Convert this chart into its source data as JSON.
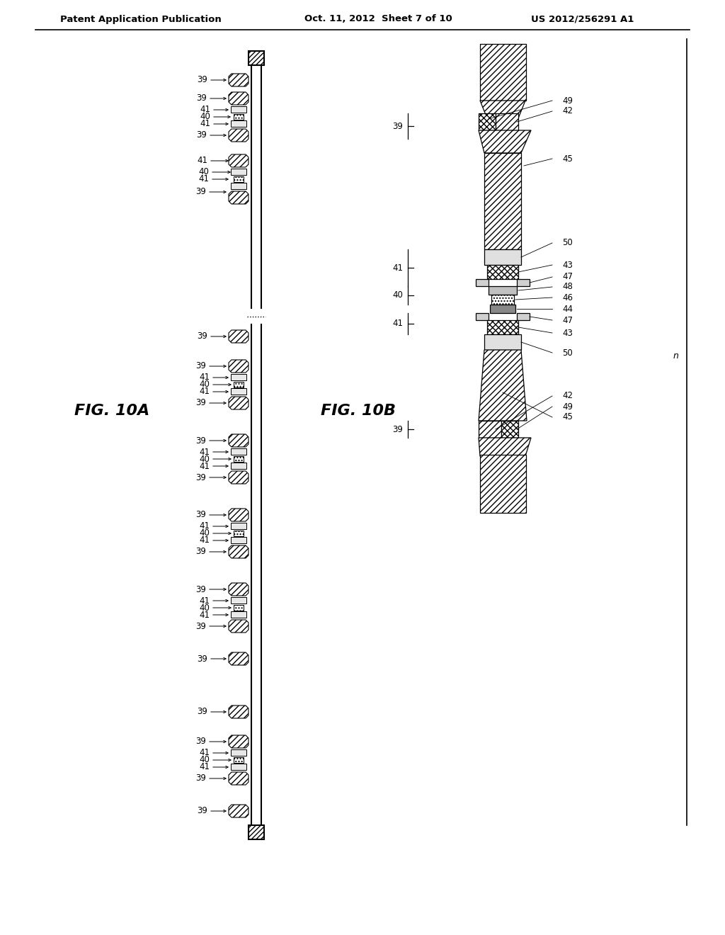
{
  "header_left": "Patent Application Publication",
  "header_center": "Oct. 11, 2012  Sheet 7 of 10",
  "header_right": "US 2012/256291 A1",
  "fig10A_label": "FIG. 10A",
  "fig10B_label": "FIG. 10B",
  "background_color": "#ffffff"
}
